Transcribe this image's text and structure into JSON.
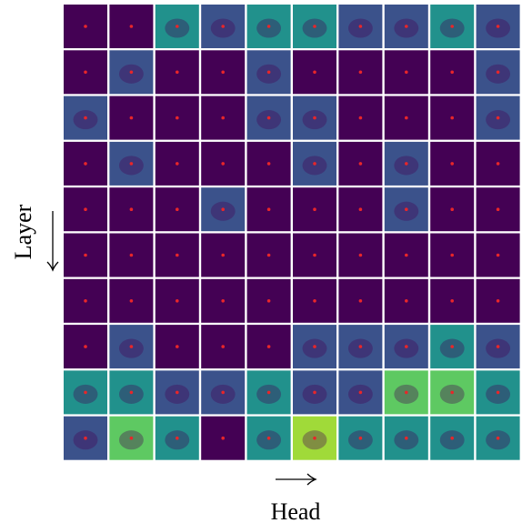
{
  "axes": {
    "x_label": "Head",
    "y_label": "Layer"
  }
}
